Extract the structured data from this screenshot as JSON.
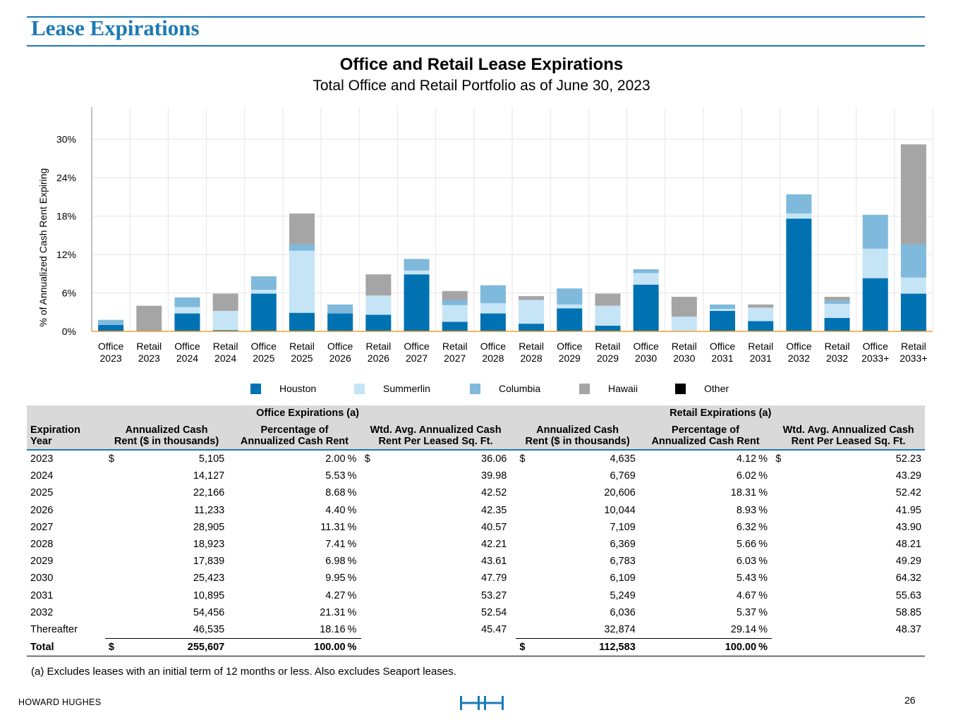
{
  "header": {
    "title": "Lease Expirations"
  },
  "chart_data": {
    "type": "bar",
    "stacked": true,
    "title": "Office and Retail Lease Expirations",
    "subtitle": "Total Office and Retail Portfolio as of June 30, 2023",
    "ylabel": "% of Annualized Cash Rent Expiring",
    "xlabel": "",
    "ylim": [
      0,
      35
    ],
    "yticks": [
      0,
      6,
      12,
      18,
      24,
      30
    ],
    "ytick_labels": [
      "0%",
      "6%",
      "12%",
      "18%",
      "24%",
      "30%"
    ],
    "categories": [
      [
        "Office",
        "2023"
      ],
      [
        "Retail",
        "2023"
      ],
      [
        "Office",
        "2024"
      ],
      [
        "Retail",
        "2024"
      ],
      [
        "Office",
        "2025"
      ],
      [
        "Retail",
        "2025"
      ],
      [
        "Office",
        "2026"
      ],
      [
        "Retail",
        "2026"
      ],
      [
        "Office",
        "2027"
      ],
      [
        "Retail",
        "2027"
      ],
      [
        "Office",
        "2028"
      ],
      [
        "Retail",
        "2028"
      ],
      [
        "Office",
        "2029"
      ],
      [
        "Retail",
        "2029"
      ],
      [
        "Office",
        "2030"
      ],
      [
        "Retail",
        "2030"
      ],
      [
        "Office",
        "2031"
      ],
      [
        "Retail",
        "2031"
      ],
      [
        "Office",
        "2032"
      ],
      [
        "Retail",
        "2032"
      ],
      [
        "Office",
        "2033+"
      ],
      [
        "Retail",
        "2033+"
      ]
    ],
    "series": [
      {
        "name": "Houston",
        "color": "#0072b2",
        "values": [
          1.0,
          0.0,
          2.8,
          0.2,
          5.9,
          2.9,
          2.8,
          2.6,
          8.9,
          1.5,
          2.8,
          1.2,
          3.6,
          0.9,
          7.3,
          0.0,
          3.2,
          1.6,
          17.6,
          2.1,
          8.3,
          5.9
        ]
      },
      {
        "name": "Summerlin",
        "color": "#c5e5f6",
        "values": [
          0.0,
          0.0,
          1.0,
          3.0,
          0.6,
          9.7,
          0.0,
          3.0,
          0.6,
          2.6,
          1.6,
          3.7,
          0.6,
          3.1,
          1.8,
          2.3,
          0.3,
          2.1,
          0.8,
          2.2,
          4.6,
          2.5
        ]
      },
      {
        "name": "Columbia",
        "color": "#7fb9db",
        "values": [
          0.8,
          0.0,
          1.5,
          0.0,
          2.1,
          1.0,
          1.4,
          0.0,
          1.8,
          0.8,
          2.8,
          0.0,
          2.5,
          0.0,
          0.6,
          0.0,
          0.7,
          0.0,
          3.0,
          0.5,
          5.3,
          5.2
        ]
      },
      {
        "name": "Hawaii",
        "color": "#a5a5a5",
        "values": [
          0.0,
          4.0,
          0.0,
          2.7,
          0.0,
          4.8,
          0.0,
          3.3,
          0.0,
          1.4,
          0.0,
          0.6,
          0.0,
          1.9,
          0.0,
          3.1,
          0.0,
          0.5,
          0.0,
          0.6,
          0.0,
          15.6
        ]
      },
      {
        "name": "Other",
        "color": "#000000",
        "values": [
          0,
          0,
          0,
          0,
          0,
          0,
          0,
          0,
          0,
          0,
          0,
          0,
          0,
          0,
          0,
          0,
          0,
          0,
          0,
          0,
          0,
          0
        ]
      }
    ],
    "legend": "bottom"
  },
  "table": {
    "year_header": [
      "Expiration",
      "Year"
    ],
    "office_group": "Office Expirations (a)",
    "retail_group": "Retail Expirations (a)",
    "col_headers": [
      [
        "Annualized Cash",
        "Rent ($ in thousands)"
      ],
      [
        "Percentage of",
        "Annualized Cash Rent"
      ],
      [
        "Wtd. Avg. Annualized Cash",
        "Rent Per Leased Sq. Ft."
      ]
    ],
    "rows": [
      {
        "year": "2023",
        "o_dol": "$",
        "o_rent": "5,105",
        "o_pct": "2.00",
        "o_psf_dol": "$",
        "o_psf": "36.06",
        "r_dol": "$",
        "r_rent": "4,635",
        "r_pct": "4.12",
        "r_psf_dol": "$",
        "r_psf": "52.23"
      },
      {
        "year": "2024",
        "o_dol": "",
        "o_rent": "14,127",
        "o_pct": "5.53",
        "o_psf_dol": "",
        "o_psf": "39.98",
        "r_dol": "",
        "r_rent": "6,769",
        "r_pct": "6.02",
        "r_psf_dol": "",
        "r_psf": "43.29"
      },
      {
        "year": "2025",
        "o_dol": "",
        "o_rent": "22,166",
        "o_pct": "8.68",
        "o_psf_dol": "",
        "o_psf": "42.52",
        "r_dol": "",
        "r_rent": "20,606",
        "r_pct": "18.31",
        "r_psf_dol": "",
        "r_psf": "52.42"
      },
      {
        "year": "2026",
        "o_dol": "",
        "o_rent": "11,233",
        "o_pct": "4.40",
        "o_psf_dol": "",
        "o_psf": "42.35",
        "r_dol": "",
        "r_rent": "10,044",
        "r_pct": "8.93",
        "r_psf_dol": "",
        "r_psf": "41.95"
      },
      {
        "year": "2027",
        "o_dol": "",
        "o_rent": "28,905",
        "o_pct": "11.31",
        "o_psf_dol": "",
        "o_psf": "40.57",
        "r_dol": "",
        "r_rent": "7,109",
        "r_pct": "6.32",
        "r_psf_dol": "",
        "r_psf": "43.90"
      },
      {
        "year": "2028",
        "o_dol": "",
        "o_rent": "18,923",
        "o_pct": "7.41",
        "o_psf_dol": "",
        "o_psf": "42.21",
        "r_dol": "",
        "r_rent": "6,369",
        "r_pct": "5.66",
        "r_psf_dol": "",
        "r_psf": "48.21"
      },
      {
        "year": "2029",
        "o_dol": "",
        "o_rent": "17,839",
        "o_pct": "6.98",
        "o_psf_dol": "",
        "o_psf": "43.61",
        "r_dol": "",
        "r_rent": "6,783",
        "r_pct": "6.03",
        "r_psf_dol": "",
        "r_psf": "49.29"
      },
      {
        "year": "2030",
        "o_dol": "",
        "o_rent": "25,423",
        "o_pct": "9.95",
        "o_psf_dol": "",
        "o_psf": "47.79",
        "r_dol": "",
        "r_rent": "6,109",
        "r_pct": "5.43",
        "r_psf_dol": "",
        "r_psf": "64.32"
      },
      {
        "year": "2031",
        "o_dol": "",
        "o_rent": "10,895",
        "o_pct": "4.27",
        "o_psf_dol": "",
        "o_psf": "53.27",
        "r_dol": "",
        "r_rent": "5,249",
        "r_pct": "4.67",
        "r_psf_dol": "",
        "r_psf": "55.63"
      },
      {
        "year": "2032",
        "o_dol": "",
        "o_rent": "54,456",
        "o_pct": "21.31",
        "o_psf_dol": "",
        "o_psf": "52.54",
        "r_dol": "",
        "r_rent": "6,036",
        "r_pct": "5.37",
        "r_psf_dol": "",
        "r_psf": "58.85"
      },
      {
        "year": "Thereafter",
        "o_dol": "",
        "o_rent": "46,535",
        "o_pct": "18.16",
        "o_psf_dol": "",
        "o_psf": "45.47",
        "r_dol": "",
        "r_rent": "32,874",
        "r_pct": "29.14",
        "r_psf_dol": "",
        "r_psf": "48.37"
      }
    ],
    "total": {
      "label": "Total",
      "o_dol": "$",
      "o_rent": "255,607",
      "o_pct": "100.00",
      "r_dol": "$",
      "r_rent": "112,583",
      "r_pct": "100.00"
    },
    "pct_sign": "%"
  },
  "footnote": "(a) Excludes leases with an initial term of 12 months or less. Also excludes Seaport leases.",
  "footer": {
    "brand": "HOWARD HUGHES",
    "page_number": "26",
    "logo": "hh-logo-icon"
  }
}
